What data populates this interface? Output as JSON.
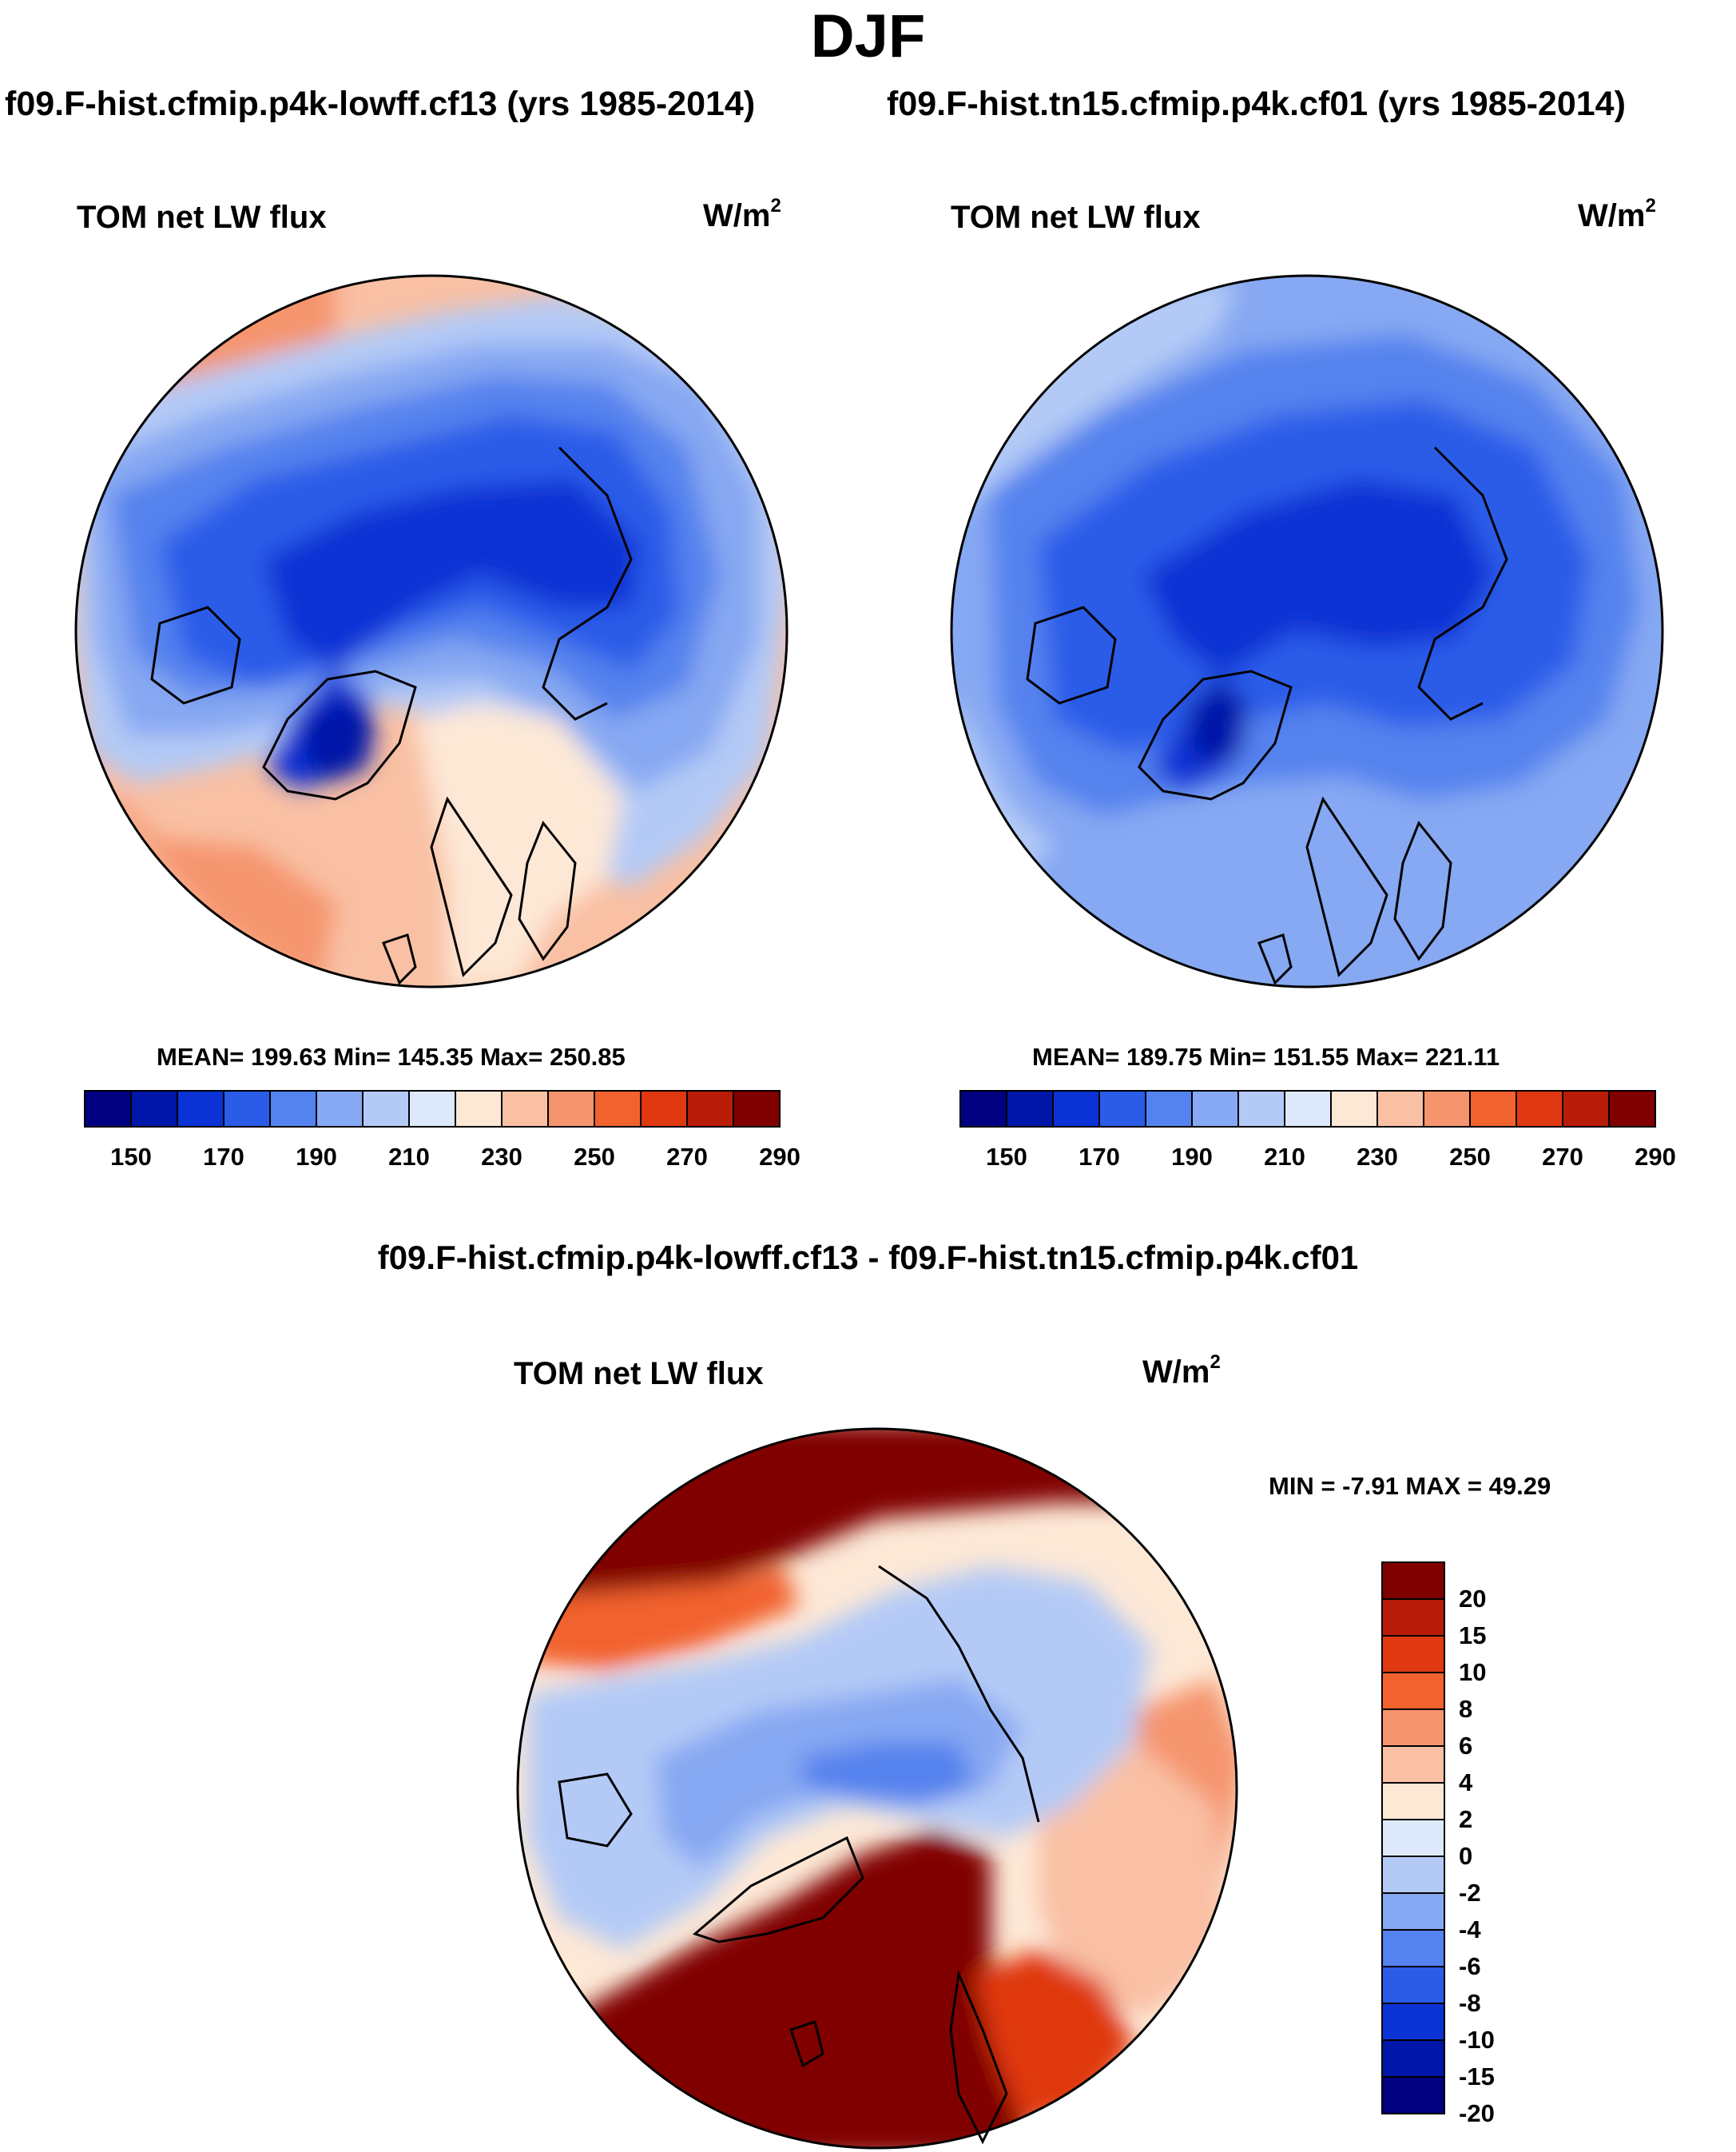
{
  "figure_title": "DJF",
  "run_headers": {
    "left": "f09.F-hist.cfmip.p4k-lowff.cf13 (yrs 1985-2014)",
    "right": "f09.F-hist.tn15.cfmip.p4k.cf01 (yrs 1985-2014)"
  },
  "panels": [
    {
      "variable": "TOM net LW flux",
      "units_base": "W/m",
      "units_exp": "2",
      "stats": "MEAN= 199.63  Min= 145.35  Max= 250.85",
      "colorbar": {
        "colors": [
          "#000080",
          "#0016a8",
          "#0a32d4",
          "#2a5ce8",
          "#5482ee",
          "#87a8f2",
          "#b4caf6",
          "#dde8fa",
          "#fde8d6",
          "#f9c0a4",
          "#f5956e",
          "#f2622e",
          "#e03810",
          "#b81c08",
          "#800000"
        ],
        "tick_labels": [
          "150",
          "170",
          "190",
          "210",
          "230",
          "250",
          "270",
          "290"
        ]
      }
    },
    {
      "variable": "TOM net LW flux",
      "units_base": "W/m",
      "units_exp": "2",
      "stats": "MEAN= 189.75  Min= 151.55  Max= 221.11",
      "colorbar": {
        "colors": [
          "#000080",
          "#0016a8",
          "#0a32d4",
          "#2a5ce8",
          "#5482ee",
          "#87a8f2",
          "#b4caf6",
          "#dde8fa",
          "#fde8d6",
          "#f9c0a4",
          "#f5956e",
          "#f2622e",
          "#e03810",
          "#b81c08",
          "#800000"
        ],
        "tick_labels": [
          "150",
          "170",
          "190",
          "210",
          "230",
          "250",
          "270",
          "290"
        ]
      }
    }
  ],
  "diff_title": "f09.F-hist.cfmip.p4k-lowff.cf13 - f09.F-hist.tn15.cfmip.p4k.cf01",
  "diff_panel": {
    "variable": "TOM net LW flux",
    "units_base": "W/m",
    "units_exp": "2",
    "stats": "MIN =  -7.91 MAX =  49.29",
    "colorbar": {
      "colors": [
        "#800000",
        "#b81c08",
        "#e03810",
        "#f2622e",
        "#f5956e",
        "#f9c0a4",
        "#fde8d6",
        "#dde8fa",
        "#b4caf6",
        "#87a8f2",
        "#5482ee",
        "#2a5ce8",
        "#0a32d4",
        "#0016a8",
        "#000080"
      ],
      "tick_labels": [
        "20",
        "15",
        "10",
        "8",
        "6",
        "4",
        "2",
        "0",
        "-2",
        "-4",
        "-6",
        "-8",
        "-10",
        "-15",
        "-20"
      ]
    }
  },
  "map_colors": {
    "deep_blue": "#0a32d4",
    "mid_blue": "#2a5ce8",
    "blue": "#5482ee",
    "light_blue": "#87a8f2",
    "pale_blue": "#b4caf6",
    "very_pale_blue": "#dde8fa",
    "pale_orange": "#fde8d6",
    "light_orange": "#f9c0a4",
    "orange": "#f5956e",
    "red_orange": "#f2622e",
    "dark_red": "#800000"
  }
}
